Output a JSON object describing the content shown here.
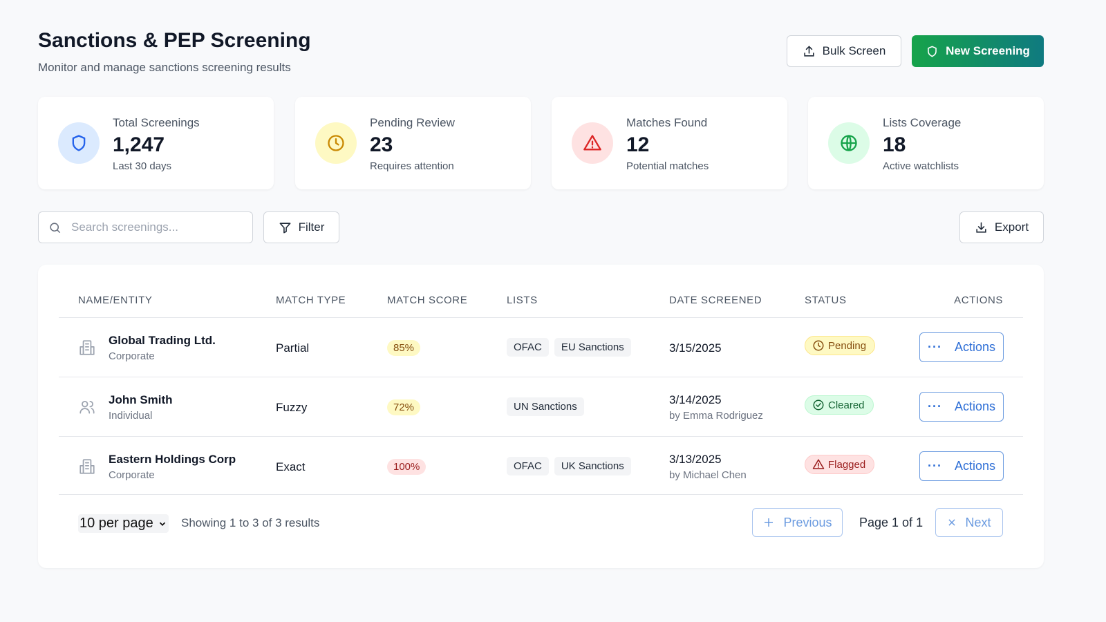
{
  "header": {
    "title": "Sanctions & PEP Screening",
    "subtitle": "Monitor and manage sanctions screening results",
    "bulk_label": "Bulk Screen",
    "new_label": "New Screening"
  },
  "stats": [
    {
      "label": "Total Screenings",
      "value": "1,247",
      "note": "Last 30 days",
      "icon": "shield-icon",
      "color": "#2563eb",
      "bg": "#dbeafe"
    },
    {
      "label": "Pending Review",
      "value": "23",
      "note": "Requires attention",
      "icon": "clock-icon",
      "color": "#ca8a04",
      "bg": "#fef9c3"
    },
    {
      "label": "Matches Found",
      "value": "12",
      "note": "Potential matches",
      "icon": "alert-triangle-icon",
      "color": "#dc2626",
      "bg": "#fee2e2"
    },
    {
      "label": "Lists Coverage",
      "value": "18",
      "note": "Active watchlists",
      "icon": "globe-icon",
      "color": "#16a34a",
      "bg": "#dcfce7"
    }
  ],
  "toolbar": {
    "search_placeholder": "Search screenings...",
    "filter_label": "Filter",
    "export_label": "Export"
  },
  "table": {
    "columns": [
      "NAME/ENTITY",
      "MATCH TYPE",
      "MATCH SCORE",
      "LISTS",
      "DATE SCREENED",
      "STATUS",
      "ACTIONS"
    ],
    "rows": [
      {
        "name": "Global Trading Ltd.",
        "kind": "Corporate",
        "match_type": "Partial",
        "score": "85%",
        "lists": [
          "OFAC",
          "EU Sanctions"
        ],
        "date": "3/15/2025",
        "by": "",
        "status": "Pending",
        "action": "Actions"
      },
      {
        "name": "John Smith",
        "kind": "Individual",
        "match_type": "Fuzzy",
        "score": "72%",
        "lists": [
          "UN Sanctions"
        ],
        "date": "3/14/2025",
        "by": "by Emma Rodriguez",
        "status": "Cleared",
        "action": "Actions"
      },
      {
        "name": "Eastern Holdings Corp",
        "kind": "Corporate",
        "match_type": "Exact",
        "score": "100%",
        "lists": [
          "OFAC",
          "UK Sanctions"
        ],
        "date": "3/13/2025",
        "by": "by Michael Chen",
        "status": "Flagged",
        "action": "Actions"
      }
    ]
  },
  "pagination": {
    "per_page": "10 per page",
    "showing": "Showing 1 to 3 of 3 results",
    "previous": "Previous",
    "page": "Page 1 of 1",
    "next": "Next"
  }
}
